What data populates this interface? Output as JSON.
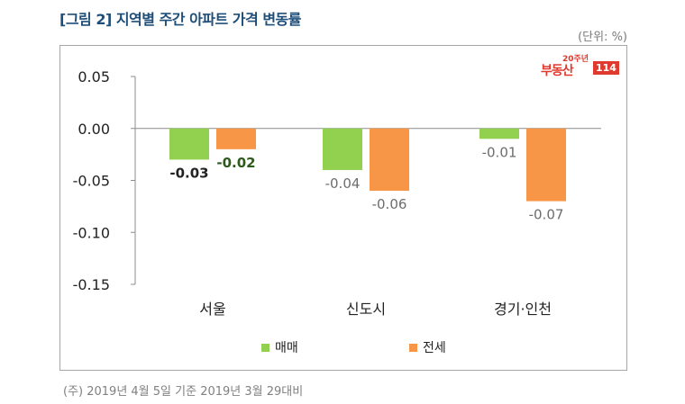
{
  "header": {
    "title": "[그림 2] 지역별 주간 아파트 가격 변동률",
    "unit": "(단위: %)"
  },
  "logo": {
    "year_mark": "20주년",
    "brand": "부동산",
    "number": "114"
  },
  "note": "(주) 2019년 4월 5일 기준 2019년 3월 29대비",
  "colors": {
    "sale": "#92d050",
    "jeonse": "#f79646",
    "accent": "#1f4e79",
    "brand": "#e03a2e"
  },
  "chart_data": {
    "type": "bar",
    "categories": [
      "서울",
      "신도시",
      "경기·인천"
    ],
    "series": [
      {
        "name": "매매",
        "values": [
          -0.03,
          -0.04,
          -0.01
        ]
      },
      {
        "name": "전세",
        "values": [
          -0.02,
          -0.06,
          -0.07
        ]
      }
    ],
    "data_labels": [
      [
        "-0.03",
        "-0.04",
        "-0.01"
      ],
      [
        "-0.02",
        "-0.06",
        "-0.07"
      ]
    ],
    "yticks": [
      "0.05",
      "0.00",
      "-0.05",
      "-0.10",
      "-0.15"
    ],
    "ylim": [
      -0.15,
      0.05
    ],
    "legend": "bottom",
    "grid": false
  }
}
